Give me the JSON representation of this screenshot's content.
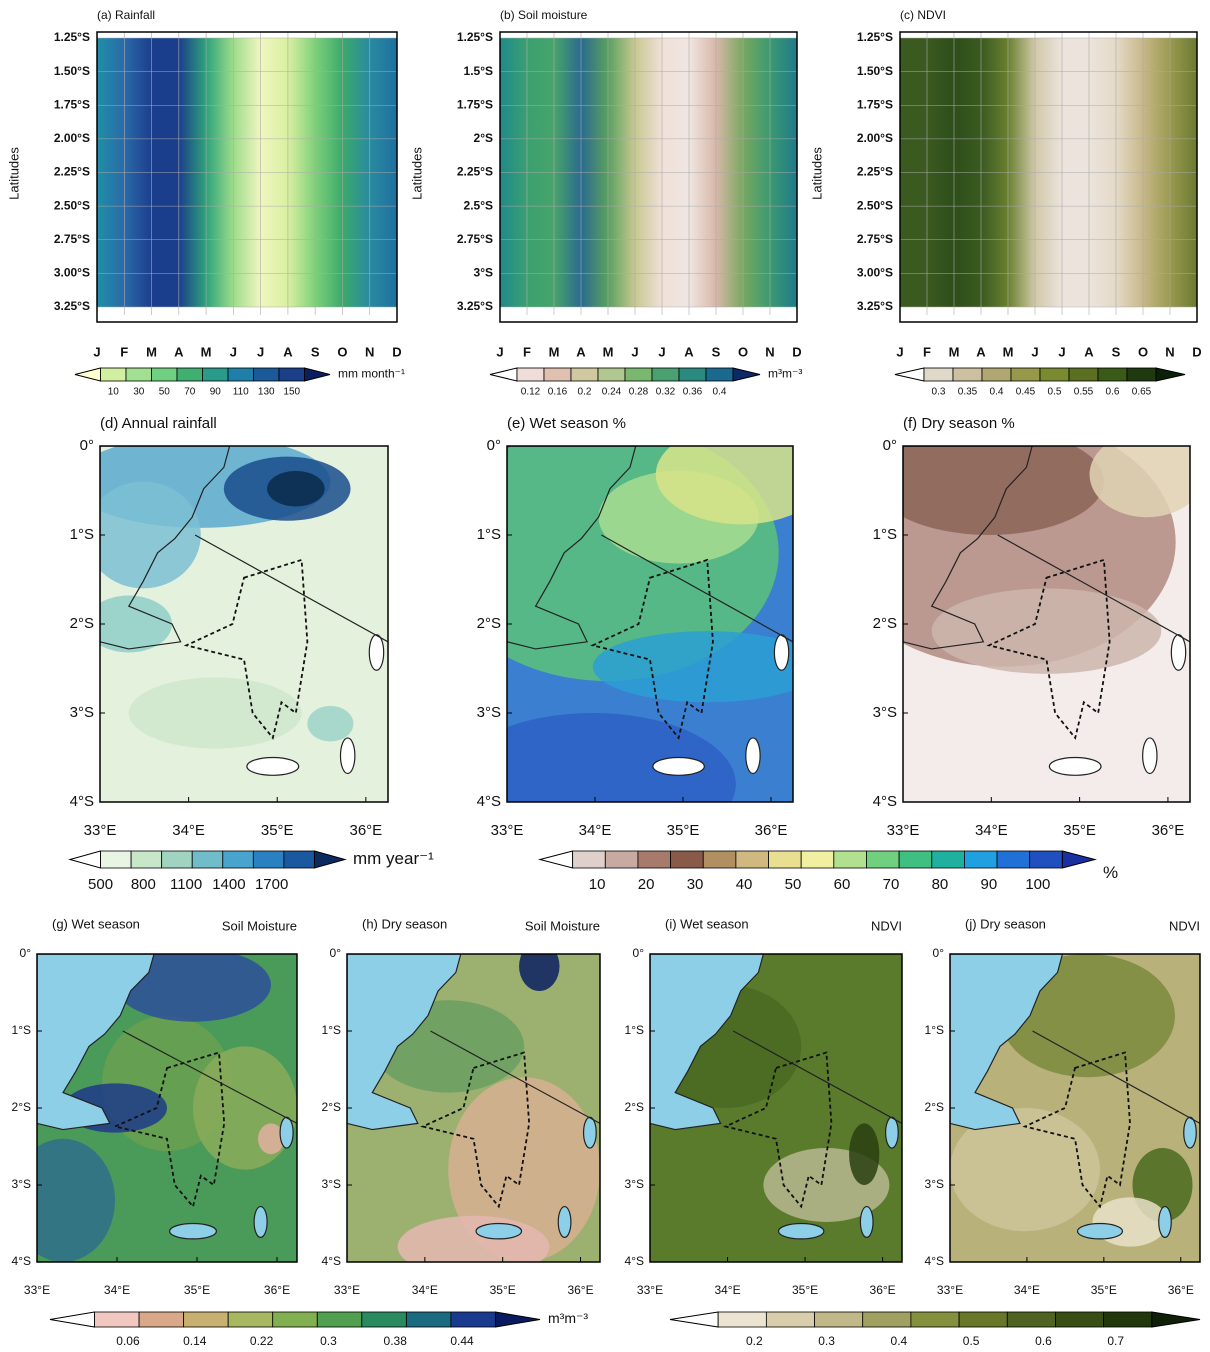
{
  "panels_top": [
    {
      "title": "(a) Rainfall",
      "ylabel": "Latitudes",
      "yticks": [
        "1.25°S",
        "1.50°S",
        "1.75°S",
        "2.00°S",
        "2.25°S",
        "2.50°S",
        "2.75°S",
        "3.00°S",
        "3.25°S"
      ]
    },
    {
      "title": "(b) Soil moisture",
      "ylabel": "Latitudes",
      "yticks": [
        "1.25°S",
        "1.5°S",
        "1.75°S",
        "2°S",
        "2.25°S",
        "2.5°S",
        "2.75°S",
        "3°S",
        "3.25°S"
      ]
    },
    {
      "title": "(c) NDVI",
      "ylabel": "Latitudes",
      "yticks": [
        "1.25°S",
        "1.50°S",
        "1.75°S",
        "2.00°S",
        "2.25°S",
        "2.50°S",
        "2.75°S",
        "3.00°S",
        "3.25°S"
      ]
    }
  ],
  "months": [
    "J",
    "F",
    "M",
    "A",
    "M",
    "J",
    "J",
    "A",
    "S",
    "O",
    "N",
    "D"
  ],
  "map_axes": {
    "yticks": [
      "0°",
      "1°S",
      "2°S",
      "3°S",
      "4°S"
    ],
    "xticks": [
      "33°E",
      "34°E",
      "35°E",
      "36°E"
    ]
  },
  "panels_mid": [
    {
      "title": "(d) Annual rainfall"
    },
    {
      "title": "(e) Wet season %"
    },
    {
      "title": "(f) Dry season %"
    }
  ],
  "panels_bottom": [
    {
      "title": "(g) Wet season",
      "variable": "Soil Moisture"
    },
    {
      "title": "(h) Dry season",
      "variable": "Soil Moisture"
    },
    {
      "title": "(i) Wet season",
      "variable": "NDVI"
    },
    {
      "title": "(j) Dry season",
      "variable": "NDVI"
    }
  ],
  "colorbars": [
    {
      "ticks": [
        10,
        30,
        50,
        70,
        90,
        110,
        130,
        150
      ],
      "unit": "mm month⁻¹"
    },
    {
      "ticks": [
        0.12,
        0.16,
        0.2,
        0.24,
        0.28,
        0.32,
        0.36,
        0.4
      ],
      "unit": "m³m⁻³"
    },
    {
      "ticks": [
        0.3,
        0.35,
        0.4,
        0.45,
        0.5,
        0.55,
        0.6,
        0.65
      ]
    },
    {
      "ticks": [
        500,
        800,
        1100,
        1400,
        1700
      ],
      "unit": "mm year⁻¹"
    },
    {
      "ticks": [
        10,
        20,
        30,
        40,
        50,
        60,
        70,
        80,
        90,
        100
      ],
      "unit": "%"
    },
    {
      "ticks": [
        0.06,
        0.14,
        0.22,
        0.3,
        0.38,
        0.44
      ],
      "unit": "m³m⁻³"
    },
    {
      "ticks": [
        0.2,
        0.3,
        0.4,
        0.5,
        0.6,
        0.7
      ]
    }
  ]
}
